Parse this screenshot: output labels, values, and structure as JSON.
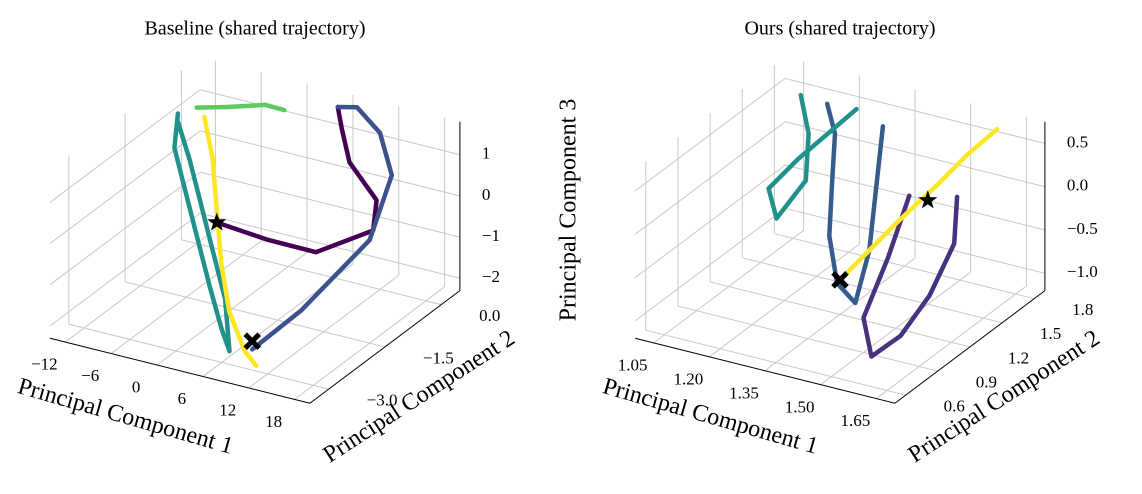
{
  "chart_data": [
    {
      "type": "line3d",
      "title": "Baseline (shared trajectory)",
      "xlabel": "Principal Component 1",
      "ylabel": "Principal Component 2",
      "zlabel": "Principal Component 3",
      "xlim": [
        -14,
        20
      ],
      "ylim": [
        -3.5,
        0.5
      ],
      "zlim": [
        -2.3,
        1.8
      ],
      "xticks": [
        {
          "value": -12,
          "label": "−12"
        },
        {
          "value": -6,
          "label": "−6"
        },
        0,
        6,
        12,
        18
      ],
      "yticks": [
        {
          "value": -3.0,
          "label": "−3.0"
        },
        {
          "value": -1.5,
          "label": "−1.5"
        },
        {
          "value": 0.0,
          "label": "0.0"
        }
      ],
      "zticks": [
        {
          "value": -2,
          "label": "−2"
        },
        {
          "value": -1,
          "label": "−1"
        },
        0,
        1
      ],
      "grid": true,
      "series": [
        {
          "color": "#440154",
          "x": [
            -2,
            4,
            10,
            16,
            14,
            8,
            6,
            5
          ],
          "y": [
            -1.5,
            -1.4,
            -1.3,
            -1.0,
            -0.5,
            0,
            0.2,
            0.3
          ],
          "z": [
            -0.3,
            -0.5,
            -0.6,
            0,
            0.3,
            0.6,
            1.2,
            1.6
          ]
        },
        {
          "color": "#3b528b",
          "x": [
            5,
            8,
            12,
            16,
            18,
            14,
            10
          ],
          "y": [
            0.3,
            0.2,
            0,
            -0.5,
            -1.5,
            -2.5,
            -3.0
          ],
          "z": [
            1.6,
            1.8,
            1.5,
            1.0,
            0.2,
            -1.0,
            -1.8
          ]
        },
        {
          "color": "#21918c",
          "x": [
            -12,
            -10,
            -6,
            -2,
            2,
            6,
            8,
            4,
            0,
            -4,
            -8,
            -12
          ],
          "y": [
            -0.5,
            -1,
            -1.5,
            -2,
            -2.5,
            -3,
            -3.2,
            -2.5,
            -2,
            -1.5,
            -1,
            -0.5
          ],
          "z": [
            1.2,
            0.8,
            0.2,
            -0.4,
            -1,
            -1.5,
            -1.8,
            -1.2,
            -0.6,
            0,
            0.6,
            1.0
          ]
        },
        {
          "color": "#5ec962",
          "x": [
            -12,
            -8,
            -4,
            -2
          ],
          "y": [
            0,
            0,
            0.2,
            0.3
          ],
          "z": [
            1.0,
            1.2,
            1.3,
            1.2
          ]
        },
        {
          "color": "#fde725",
          "x": [
            -10,
            -6,
            -2,
            2,
            6,
            10,
            12
          ],
          "y": [
            -0.2,
            -0.8,
            -1.5,
            -2.2,
            -2.8,
            -3.2,
            -3.3
          ],
          "z": [
            1.0,
            0.6,
            0,
            -0.6,
            -1.2,
            -1.7,
            -1.9
          ]
        }
      ],
      "markers": [
        {
          "symbol": "star",
          "x": -2,
          "y": -1.5,
          "z": -0.3
        },
        {
          "symbol": "cross",
          "x": 10,
          "y": -3.0,
          "z": -1.6
        }
      ]
    },
    {
      "type": "line3d",
      "title": "Ours (shared trajectory)",
      "xlabel": "Principal Component 1",
      "ylabel": "Principal Component 2",
      "xlim": [
        1.0,
        1.7
      ],
      "ylim": [
        0.5,
        1.9
      ],
      "zlim": [
        -1.2,
        0.75
      ],
      "xticks": [
        1.05,
        {
          "value": 1.2,
          "label": "1.20"
        },
        1.35,
        {
          "value": 1.5,
          "label": "1.50"
        },
        1.65
      ],
      "yticks": [
        0.6,
        0.9,
        1.2,
        1.5,
        1.8
      ],
      "zticks": [
        {
          "value": -1.0,
          "label": "−1.0"
        },
        {
          "value": -0.5,
          "label": "−0.5"
        },
        {
          "value": 0.0,
          "label": "0.0"
        },
        0.5
      ],
      "grid": true,
      "series": [
        {
          "color": "#46327e",
          "x": [
            1.55,
            1.6,
            1.62,
            1.6,
            1.55,
            1.5,
            1.48,
            1.45
          ],
          "y": [
            1.6,
            1.4,
            1.1,
            0.9,
            0.8,
            0.9,
            1.2,
            1.5
          ],
          "z": [
            0.0,
            -0.3,
            -0.6,
            -0.9,
            -1.1,
            -0.8,
            -0.4,
            0.0
          ]
        },
        {
          "color": "#365c8d",
          "x": [
            1.2,
            1.25,
            1.3,
            1.35,
            1.4,
            1.42,
            1.4,
            1.35
          ],
          "y": [
            1.6,
            1.5,
            1.3,
            1.1,
            1.0,
            1.1,
            1.3,
            1.6
          ],
          "z": [
            0.7,
            0.5,
            0.2,
            -0.2,
            -0.6,
            -0.9,
            -0.5,
            0.6
          ]
        },
        {
          "color": "#21918c",
          "x": [
            1.1,
            1.15,
            1.2,
            1.15,
            1.1,
            1.15,
            1.25
          ],
          "y": [
            1.7,
            1.6,
            1.4,
            1.3,
            1.4,
            1.5,
            1.7
          ],
          "z": [
            0.6,
            0.3,
            0,
            -0.4,
            -0.2,
            0.1,
            0.6
          ]
        },
        {
          "color": "#fde725",
          "x": [
            1.35,
            1.4,
            1.45,
            1.5,
            1.55,
            1.6
          ],
          "y": [
            1.2,
            1.3,
            1.4,
            1.6,
            1.7,
            1.8
          ],
          "z": [
            -0.8,
            -0.5,
            -0.2,
            0.1,
            0.4,
            0.65
          ]
        }
      ],
      "markers": [
        {
          "symbol": "cross",
          "x": 1.35,
          "y": 1.2,
          "z": -0.8
        },
        {
          "symbol": "star",
          "x": 1.5,
          "y": 1.5,
          "z": 0.0
        }
      ]
    }
  ]
}
